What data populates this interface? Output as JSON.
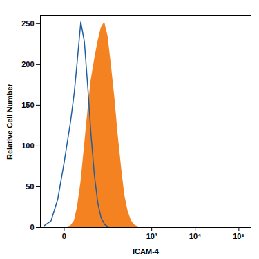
{
  "chart_data": {
    "type": "line",
    "x_label": "ICAM-4",
    "y_label": "Relative Cell Number",
    "x": [
      -19,
      -10,
      -4,
      0,
      4,
      7,
      10,
      14,
      19,
      25,
      31,
      39,
      49,
      60,
      74,
      90,
      109,
      133,
      160,
      193,
      232,
      279,
      336,
      403,
      482,
      692
    ],
    "series": [
      {
        "type": "line",
        "color": "#1f5fa0",
        "values": [
          2,
          8,
          35,
          80,
          130,
          165,
          205,
          252,
          228,
          170,
          115,
          65,
          30,
          12,
          4,
          1,
          0,
          0,
          0,
          0,
          0,
          0,
          0,
          0,
          0,
          0
        ]
      },
      {
        "type": "area",
        "color": "#f58220",
        "values": [
          0,
          0,
          0,
          0,
          2,
          8,
          25,
          55,
          100,
          145,
          180,
          205,
          228,
          245,
          252,
          235,
          200,
          160,
          115,
          75,
          40,
          20,
          8,
          3,
          1,
          0
        ]
      }
    ],
    "xlim": [
      -25,
      190000
    ],
    "xticks": [
      0,
      {
        "value": 1000,
        "label": "10³"
      },
      {
        "value": 10000,
        "label": "10⁴"
      },
      {
        "value": 100000,
        "label": "10⁵"
      }
    ],
    "ylim": [
      0,
      260
    ],
    "yticks": [
      0,
      50,
      100,
      150,
      200,
      250
    ],
    "grid": false
  }
}
